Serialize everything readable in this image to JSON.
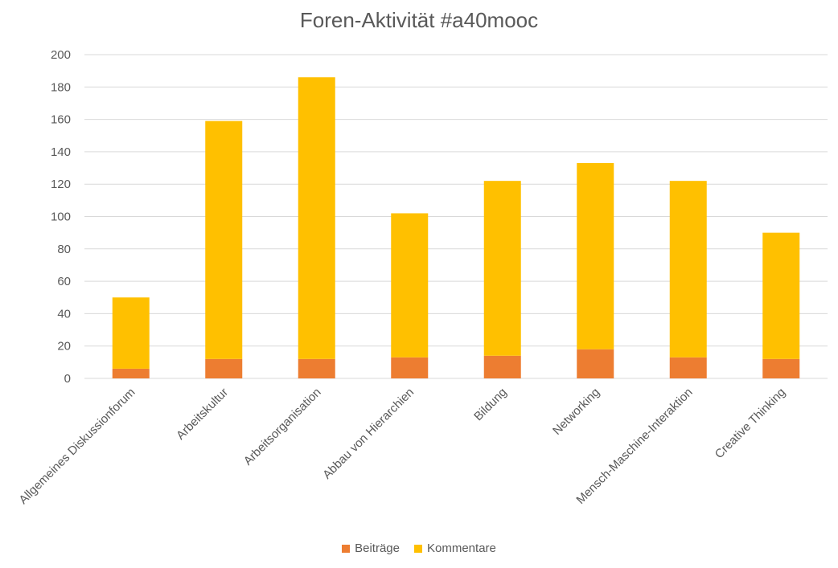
{
  "chart_data": {
    "type": "bar",
    "stacked": true,
    "title": "Foren-Aktivität #a40mooc",
    "xlabel": "",
    "ylabel": "",
    "ylim": [
      0,
      200
    ],
    "yticks": [
      0,
      20,
      40,
      60,
      80,
      100,
      120,
      140,
      160,
      180,
      200
    ],
    "grid": true,
    "legend_position": "bottom",
    "categories": [
      "Allgemeines Diskussionforum",
      "Arbeitskultur",
      "Arbeitsorganisation",
      "Abbau von Hierarchien",
      "Bildung",
      "Networking",
      "Mensch-Maschine-Interaktion",
      "Creative Thinking"
    ],
    "series": [
      {
        "name": "Beiträge",
        "color": "#ED7D31",
        "values": [
          6,
          12,
          12,
          13,
          14,
          18,
          13,
          12
        ]
      },
      {
        "name": "Kommentare",
        "color": "#FFC000",
        "values": [
          44,
          147,
          174,
          89,
          108,
          115,
          109,
          78
        ]
      }
    ]
  }
}
